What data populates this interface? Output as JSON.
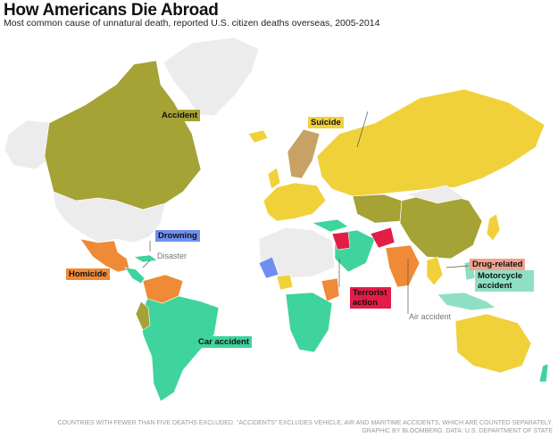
{
  "title": "How Americans Die Abroad",
  "subtitle": "Most common cause of unnatural death, reported U.S. citizen deaths overseas, 2005-2014",
  "legend": {
    "accident": {
      "label": "Accident",
      "color": "#a5a236"
    },
    "suicide": {
      "label": "Suicide",
      "color": "#f0d13a"
    },
    "drowning": {
      "label": "Drowning",
      "color": "#6f8ff0"
    },
    "disaster": {
      "label": "Disaster",
      "color": "#f1f1ef"
    },
    "homicide": {
      "label": "Homicide",
      "color": "#ef8a36"
    },
    "car_accident": {
      "label": "Car accident",
      "color": "#3fd39d"
    },
    "terrorist_action": {
      "label": "Terrorist action",
      "color": "#e31d45"
    },
    "air_accident": {
      "label": "Air accident",
      "color": "#d9d9d9"
    },
    "drug_related": {
      "label": "Drug-related",
      "color": "#f2a18f"
    },
    "motorcycle_accident": {
      "label": "Motorcycle accident",
      "color": "#8fe0c3"
    }
  },
  "no_data_color": "#ececec",
  "footer": {
    "line1": "COUNTRIES WITH FEWER THAN FIVE DEATHS EXCLUDED. \"ACCIDENTS\" EXCLUDES VEHICLE, AIR AND MARITIME ACCIDENTS, WHICH ARE COUNTED SEPARATELY.",
    "line2": "GRAPHIC BY BLOOMBERG. DATA: U.S. DEPARTMENT OF STATE"
  }
}
